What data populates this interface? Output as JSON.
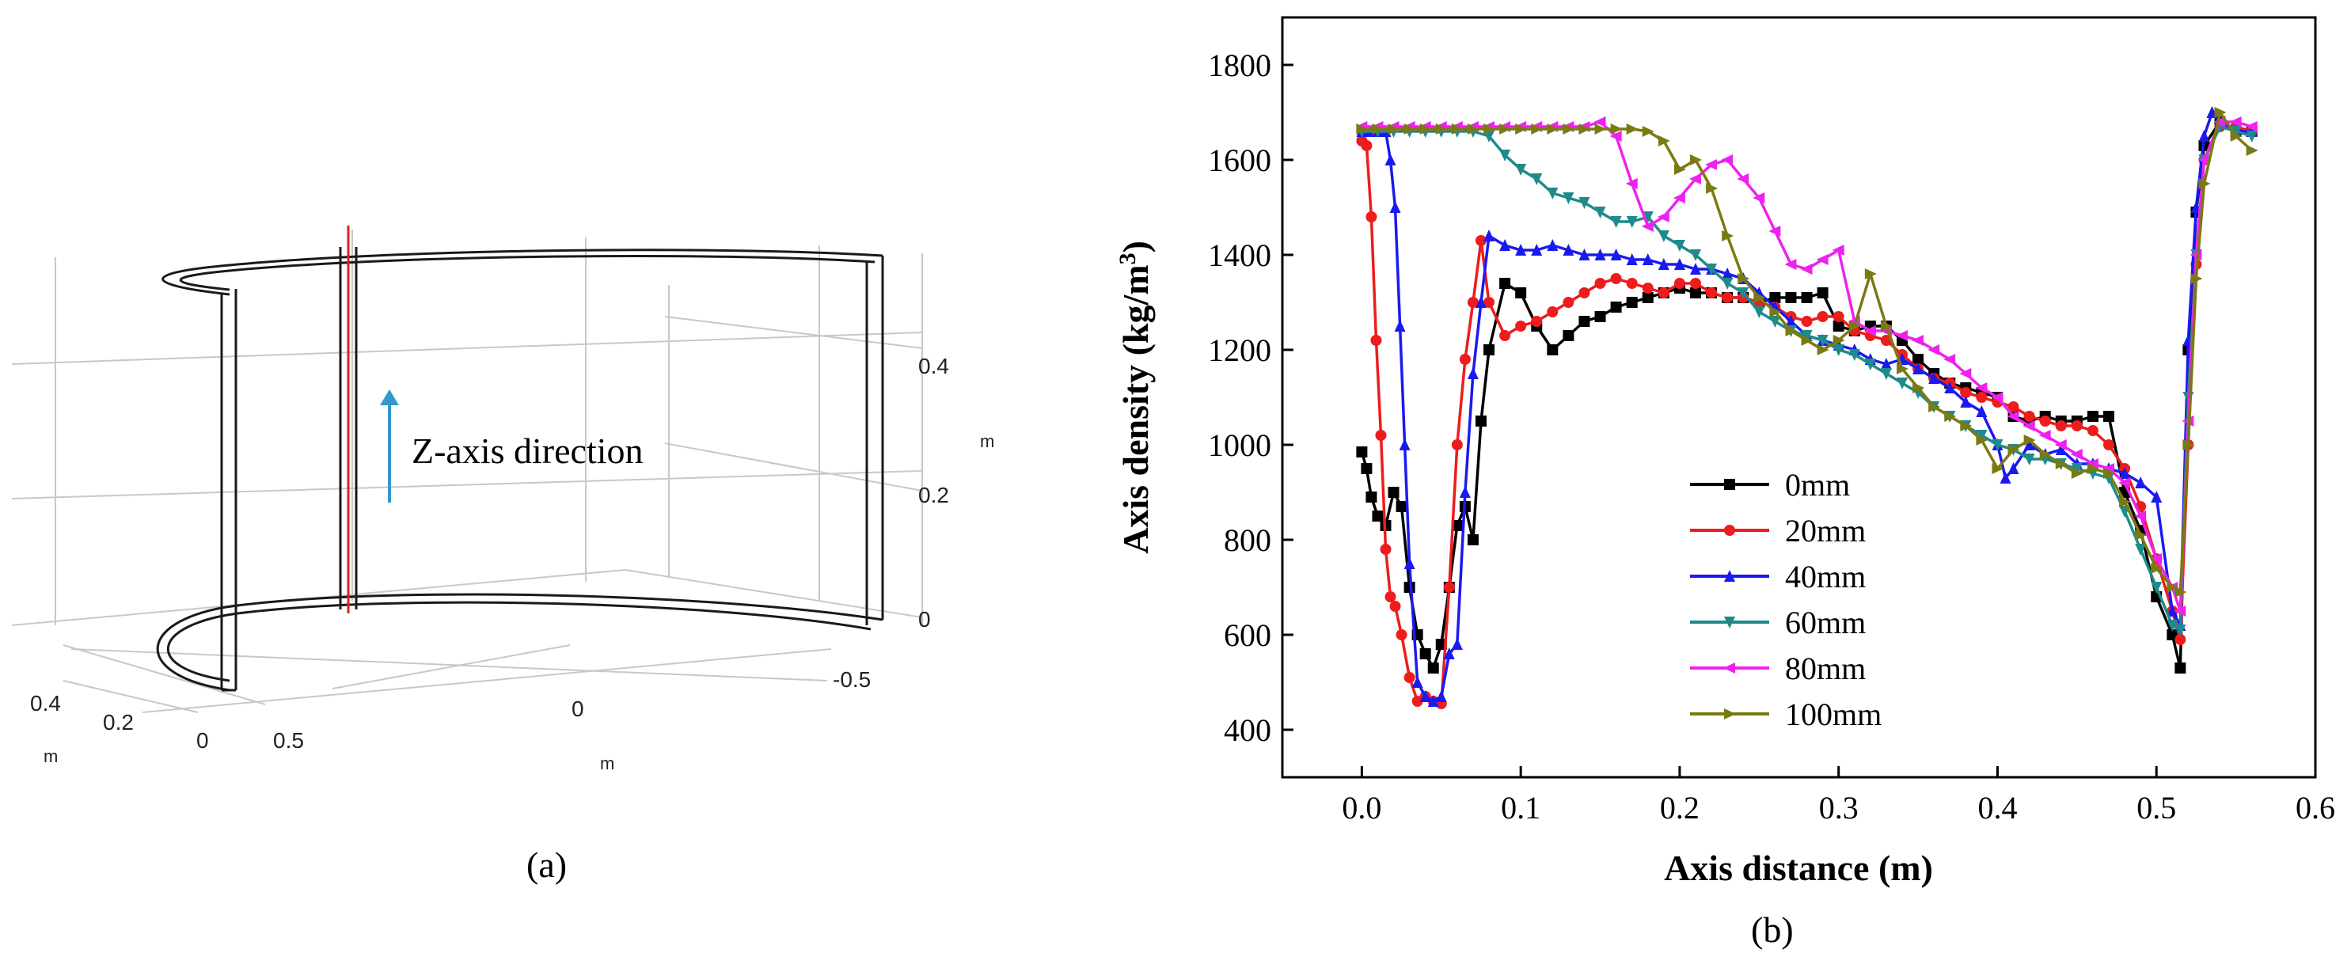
{
  "panel_a": {
    "caption": "(a)",
    "annotation": "Z-axis direction",
    "z_ticks": [
      "0.4",
      "0.2",
      "0"
    ],
    "z_unit": "m",
    "y_ticks": [
      "0.4",
      "0.2",
      "0"
    ],
    "y_unit": "m",
    "x_ticks": [
      "0.5",
      "0",
      "-0.5"
    ],
    "x_unit": "m",
    "colors": {
      "arrow": "#3399cc",
      "line": "#e02020",
      "structure": "#1a1a1a",
      "grid": "#c8c8c8"
    }
  },
  "panel_b": {
    "caption": "(b)",
    "legend_labels": [
      "0mm",
      "20mm",
      "40mm",
      "60mm",
      "80mm",
      "100mm"
    ]
  },
  "chart_data": {
    "type": "line",
    "title": "",
    "xlabel": "Axis distance (m)",
    "ylabel": "Axis density (kg/m",
    "ylabel_sup": "3",
    "ylabel_end": ")",
    "xlim": [
      -0.05,
      0.6
    ],
    "ylim": [
      300,
      1900
    ],
    "xticks": [
      0.0,
      0.1,
      0.2,
      0.3,
      0.4,
      0.5,
      0.6
    ],
    "xtick_labels": [
      "0.0",
      "0.1",
      "0.2",
      "0.3",
      "0.4",
      "0.5",
      "0.6"
    ],
    "yticks": [
      400,
      600,
      800,
      1000,
      1200,
      1400,
      1600,
      1800
    ],
    "ytick_labels": [
      "400",
      "600",
      "800",
      "1000",
      "1200",
      "1400",
      "1600",
      "1800"
    ],
    "legend_position": "center-bottom",
    "series": [
      {
        "name": "0mm",
        "color": "#000000",
        "marker": "square",
        "x": [
          0,
          0.003,
          0.006,
          0.01,
          0.015,
          0.02,
          0.025,
          0.03,
          0.035,
          0.04,
          0.045,
          0.05,
          0.055,
          0.06,
          0.065,
          0.07,
          0.075,
          0.08,
          0.09,
          0.1,
          0.11,
          0.12,
          0.13,
          0.14,
          0.15,
          0.16,
          0.17,
          0.18,
          0.19,
          0.2,
          0.21,
          0.22,
          0.23,
          0.24,
          0.25,
          0.26,
          0.27,
          0.28,
          0.29,
          0.3,
          0.31,
          0.32,
          0.33,
          0.34,
          0.35,
          0.36,
          0.37,
          0.38,
          0.39,
          0.4,
          0.41,
          0.42,
          0.43,
          0.44,
          0.45,
          0.46,
          0.47,
          0.48,
          0.49,
          0.5,
          0.51,
          0.515,
          0.52,
          0.525,
          0.53,
          0.54,
          0.55,
          0.56
        ],
        "y": [
          985,
          950,
          890,
          850,
          830,
          900,
          870,
          700,
          600,
          560,
          530,
          580,
          700,
          830,
          870,
          800,
          1050,
          1200,
          1340,
          1320,
          1250,
          1200,
          1230,
          1260,
          1270,
          1290,
          1300,
          1310,
          1320,
          1330,
          1320,
          1320,
          1310,
          1310,
          1300,
          1310,
          1310,
          1310,
          1320,
          1250,
          1240,
          1250,
          1250,
          1220,
          1180,
          1150,
          1130,
          1120,
          1110,
          1100,
          1060,
          1050,
          1060,
          1050,
          1050,
          1060,
          1060,
          900,
          820,
          680,
          600,
          530,
          1200,
          1490,
          1630,
          1680,
          1660,
          1660
        ]
      },
      {
        "name": "20mm",
        "color": "#ee1c1c",
        "marker": "circle",
        "x": [
          0,
          0.003,
          0.006,
          0.009,
          0.012,
          0.015,
          0.018,
          0.021,
          0.025,
          0.03,
          0.035,
          0.04,
          0.045,
          0.05,
          0.055,
          0.06,
          0.065,
          0.07,
          0.075,
          0.08,
          0.09,
          0.1,
          0.11,
          0.12,
          0.13,
          0.14,
          0.15,
          0.16,
          0.17,
          0.18,
          0.19,
          0.2,
          0.21,
          0.22,
          0.23,
          0.24,
          0.25,
          0.26,
          0.27,
          0.28,
          0.29,
          0.3,
          0.31,
          0.32,
          0.33,
          0.34,
          0.35,
          0.36,
          0.37,
          0.38,
          0.39,
          0.4,
          0.41,
          0.42,
          0.43,
          0.44,
          0.45,
          0.46,
          0.47,
          0.48,
          0.49,
          0.5,
          0.51,
          0.515,
          0.52,
          0.525,
          0.53,
          0.54,
          0.55,
          0.56
        ],
        "y": [
          1640,
          1630,
          1480,
          1220,
          1020,
          780,
          680,
          660,
          600,
          510,
          460,
          470,
          460,
          455,
          700,
          1000,
          1180,
          1300,
          1430,
          1300,
          1230,
          1250,
          1260,
          1280,
          1300,
          1320,
          1340,
          1350,
          1340,
          1330,
          1320,
          1340,
          1340,
          1320,
          1310,
          1310,
          1300,
          1290,
          1270,
          1260,
          1270,
          1270,
          1240,
          1230,
          1220,
          1190,
          1160,
          1140,
          1130,
          1110,
          1100,
          1090,
          1080,
          1060,
          1050,
          1040,
          1040,
          1030,
          1000,
          950,
          870,
          760,
          650,
          590,
          1000,
          1380,
          1600,
          1670,
          1670,
          1660
        ]
      },
      {
        "name": "40mm",
        "color": "#1a1af0",
        "marker": "triangle",
        "x": [
          0,
          0.005,
          0.01,
          0.015,
          0.018,
          0.021,
          0.024,
          0.027,
          0.03,
          0.035,
          0.04,
          0.045,
          0.05,
          0.055,
          0.06,
          0.065,
          0.07,
          0.075,
          0.08,
          0.09,
          0.1,
          0.11,
          0.12,
          0.13,
          0.14,
          0.15,
          0.16,
          0.17,
          0.18,
          0.19,
          0.2,
          0.21,
          0.22,
          0.23,
          0.24,
          0.25,
          0.26,
          0.27,
          0.28,
          0.29,
          0.3,
          0.31,
          0.32,
          0.33,
          0.34,
          0.35,
          0.36,
          0.37,
          0.38,
          0.39,
          0.4,
          0.405,
          0.41,
          0.42,
          0.43,
          0.44,
          0.45,
          0.46,
          0.47,
          0.48,
          0.49,
          0.5,
          0.51,
          0.515,
          0.52,
          0.525,
          0.53,
          0.535,
          0.54,
          0.55,
          0.56
        ],
        "y": [
          1660,
          1660,
          1660,
          1660,
          1600,
          1500,
          1250,
          1000,
          750,
          500,
          470,
          460,
          470,
          560,
          580,
          900,
          1150,
          1300,
          1440,
          1420,
          1410,
          1410,
          1420,
          1410,
          1400,
          1400,
          1400,
          1390,
          1390,
          1380,
          1380,
          1370,
          1370,
          1360,
          1350,
          1320,
          1290,
          1260,
          1230,
          1220,
          1210,
          1200,
          1180,
          1170,
          1180,
          1160,
          1140,
          1120,
          1090,
          1070,
          1000,
          930,
          950,
          1000,
          980,
          990,
          960,
          960,
          950,
          940,
          920,
          890,
          650,
          620,
          1220,
          1500,
          1650,
          1700,
          1680,
          1660,
          1660
        ]
      },
      {
        "name": "60mm",
        "color": "#1f8a8a",
        "marker": "down-triangle",
        "x": [
          0,
          0.01,
          0.02,
          0.03,
          0.04,
          0.05,
          0.06,
          0.07,
          0.08,
          0.09,
          0.1,
          0.11,
          0.12,
          0.13,
          0.14,
          0.15,
          0.16,
          0.17,
          0.18,
          0.19,
          0.2,
          0.21,
          0.22,
          0.23,
          0.24,
          0.25,
          0.26,
          0.27,
          0.28,
          0.29,
          0.3,
          0.31,
          0.32,
          0.33,
          0.34,
          0.35,
          0.36,
          0.37,
          0.38,
          0.39,
          0.4,
          0.41,
          0.42,
          0.43,
          0.44,
          0.45,
          0.46,
          0.47,
          0.48,
          0.49,
          0.5,
          0.51,
          0.515,
          0.52,
          0.525,
          0.53,
          0.54,
          0.55,
          0.56
        ],
        "y": [
          1660,
          1660,
          1660,
          1660,
          1660,
          1660,
          1660,
          1660,
          1650,
          1610,
          1580,
          1560,
          1530,
          1520,
          1510,
          1490,
          1470,
          1470,
          1480,
          1440,
          1420,
          1400,
          1370,
          1340,
          1320,
          1280,
          1260,
          1240,
          1230,
          1220,
          1200,
          1190,
          1170,
          1150,
          1130,
          1110,
          1080,
          1060,
          1040,
          1020,
          1000,
          990,
          970,
          970,
          960,
          950,
          940,
          930,
          860,
          780,
          700,
          620,
          610,
          1100,
          1400,
          1600,
          1670,
          1660,
          1650
        ]
      },
      {
        "name": "80mm",
        "color": "#ee22ee",
        "marker": "left-triangle",
        "x": [
          0,
          0.01,
          0.02,
          0.03,
          0.04,
          0.05,
          0.06,
          0.07,
          0.08,
          0.09,
          0.1,
          0.11,
          0.12,
          0.13,
          0.14,
          0.15,
          0.16,
          0.17,
          0.18,
          0.19,
          0.2,
          0.21,
          0.22,
          0.23,
          0.24,
          0.25,
          0.26,
          0.27,
          0.28,
          0.29,
          0.3,
          0.31,
          0.32,
          0.33,
          0.34,
          0.35,
          0.36,
          0.37,
          0.38,
          0.39,
          0.4,
          0.41,
          0.42,
          0.43,
          0.44,
          0.45,
          0.46,
          0.47,
          0.48,
          0.49,
          0.5,
          0.51,
          0.515,
          0.52,
          0.525,
          0.53,
          0.54,
          0.55,
          0.56
        ],
        "y": [
          1670,
          1670,
          1670,
          1670,
          1670,
          1670,
          1670,
          1670,
          1670,
          1670,
          1670,
          1670,
          1670,
          1670,
          1670,
          1680,
          1650,
          1550,
          1460,
          1480,
          1520,
          1560,
          1590,
          1600,
          1560,
          1520,
          1450,
          1380,
          1370,
          1390,
          1410,
          1260,
          1240,
          1240,
          1230,
          1220,
          1200,
          1180,
          1150,
          1120,
          1100,
          1060,
          1040,
          1020,
          1000,
          980,
          960,
          950,
          920,
          850,
          760,
          700,
          650,
          1050,
          1400,
          1600,
          1680,
          1680,
          1670
        ]
      },
      {
        "name": "100mm",
        "color": "#7a7a12",
        "marker": "right-triangle",
        "x": [
          0,
          0.01,
          0.02,
          0.03,
          0.04,
          0.05,
          0.06,
          0.07,
          0.08,
          0.09,
          0.1,
          0.11,
          0.12,
          0.13,
          0.14,
          0.15,
          0.16,
          0.17,
          0.18,
          0.19,
          0.2,
          0.21,
          0.22,
          0.23,
          0.24,
          0.25,
          0.26,
          0.27,
          0.28,
          0.29,
          0.3,
          0.31,
          0.32,
          0.33,
          0.34,
          0.35,
          0.36,
          0.37,
          0.38,
          0.39,
          0.4,
          0.41,
          0.42,
          0.43,
          0.44,
          0.45,
          0.46,
          0.47,
          0.48,
          0.49,
          0.5,
          0.51,
          0.515,
          0.52,
          0.525,
          0.53,
          0.54,
          0.55,
          0.56
        ],
        "y": [
          1665,
          1665,
          1665,
          1665,
          1665,
          1665,
          1665,
          1665,
          1665,
          1665,
          1665,
          1665,
          1665,
          1665,
          1665,
          1665,
          1665,
          1665,
          1660,
          1640,
          1580,
          1600,
          1540,
          1440,
          1350,
          1310,
          1280,
          1240,
          1220,
          1200,
          1220,
          1250,
          1360,
          1250,
          1160,
          1120,
          1080,
          1060,
          1040,
          1010,
          950,
          990,
          1010,
          980,
          960,
          940,
          950,
          940,
          880,
          810,
          740,
          700,
          690,
          1000,
          1350,
          1550,
          1700,
          1650,
          1620
        ]
      }
    ]
  }
}
